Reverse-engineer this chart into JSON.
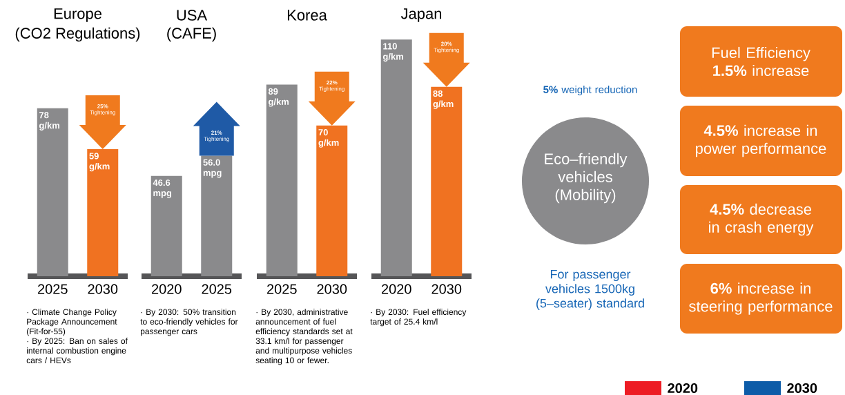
{
  "chart_data": [
    {
      "type": "bar",
      "title": "Europe",
      "subtitle": "(CO2 Regulations)",
      "categories": [
        "2025",
        "2030"
      ],
      "values": [
        78,
        59
      ],
      "colors": [
        "#8a8a8c",
        "#f07221"
      ],
      "value_labels": [
        "78 g/km",
        "59 g/km"
      ],
      "annotations": [
        "**25%** Tightening",
        "· Climate Change Policy Package Announcement (Fit-for-55)",
        "· By 2025: Ban on sales of internal combustion engine cars / HEVs"
      ]
    },
    {
      "type": "bar",
      "title": "USA",
      "subtitle": "(CAFE)",
      "categories": [
        "2020",
        "2025"
      ],
      "values": [
        46.6,
        56.0
      ],
      "colors": [
        "#8a8a8c",
        "#8a8a8c"
      ],
      "value_labels": [
        "46.6 mpg",
        "56.0 mpg"
      ],
      "annotations": [
        "**21%** Tightening",
        "· By 2030: 50% transition to eco-friendly vehicles for passenger cars"
      ]
    },
    {
      "type": "bar",
      "title": "Korea",
      "categories": [
        "2025",
        "2030"
      ],
      "values": [
        89,
        70
      ],
      "colors": [
        "#8a8a8c",
        "#f07221"
      ],
      "value_labels": [
        "89 g/km",
        "70 g/km"
      ],
      "annotations": [
        "**22%** Tightening",
        "· By 2030, administrative announcement of fuel efficiency standards set at 33.1 km/l for passenger and multipurpose vehicles seating 10 or fewer."
      ]
    },
    {
      "type": "bar",
      "title": "Japan",
      "categories": [
        "2020",
        "2030"
      ],
      "values": [
        110,
        88
      ],
      "colors": [
        "#8a8a8c",
        "#f07221"
      ],
      "value_labels": [
        "110 g/km",
        "88 g/km"
      ],
      "annotations": [
        "**20%** Tightening",
        "· By 2030: Fuel efficiency target of 25.4 km/l"
      ]
    },
    {
      "type": "other",
      "title": "Eco–friendly vehicles (Mobility)",
      "annotations": [
        "**5%** weight reduction",
        "For passenger vehicles 1500kg (5–seater) standard",
        "Fuel Efficiency **1.5%** increase",
        "**4.5%** increase in power performance",
        "**4.5%** decrease in crash energy",
        "**6%** increase in steering performance"
      ],
      "legend": "bottom right",
      "series": [
        {
          "name": "2020",
          "color": "#ed1c24"
        },
        {
          "name": "2030",
          "color": "#0d5ca8"
        }
      ]
    }
  ]
}
